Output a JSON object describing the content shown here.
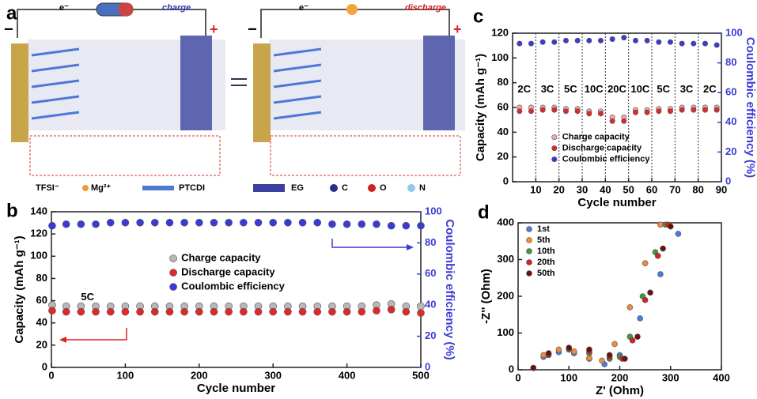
{
  "diagram": {
    "panel": "a",
    "left_label": "charge",
    "right_label": "discharge",
    "electron": "e⁻",
    "minus": "−",
    "plus": "+",
    "legend": [
      "TFSI⁻",
      "Mg²⁺",
      "PTCDI",
      "EG",
      "C",
      "O",
      "N"
    ]
  },
  "chart_data": [
    {
      "type": "scatter",
      "panel": "b",
      "x_label": "Cycle number",
      "y_label": "Capacity (mAh g⁻¹)",
      "y2_label": "Coulombic efficiency (%)",
      "xlim": [
        0,
        500
      ],
      "xticks": [
        0,
        100,
        200,
        300,
        400,
        500
      ],
      "ylim": [
        0,
        140
      ],
      "yticks": [
        0,
        20,
        40,
        60,
        80,
        100,
        120,
        140
      ],
      "y2lim": [
        0,
        100
      ],
      "y2ticks": [
        0,
        20,
        40,
        60,
        80,
        100
      ],
      "y2_color": "#3b3bd6",
      "annotation": "5C",
      "legend": "center",
      "x": [
        1,
        20,
        40,
        60,
        80,
        100,
        120,
        140,
        160,
        180,
        200,
        220,
        240,
        260,
        280,
        300,
        320,
        340,
        360,
        380,
        400,
        420,
        440,
        460,
        480,
        500
      ],
      "series": [
        {
          "name": "Charge capacity",
          "color": "#b8b8b8",
          "values": [
            56,
            55,
            55,
            55,
            55,
            55,
            55,
            55,
            55,
            55,
            55,
            55,
            55,
            55,
            55,
            55,
            55,
            55,
            55,
            55,
            55,
            55,
            56,
            57,
            55,
            55
          ]
        },
        {
          "name": "Discharge capacity",
          "color": "#e0282c",
          "values": [
            51,
            50,
            50,
            50,
            50,
            50,
            50,
            50,
            50,
            50,
            50,
            50,
            50,
            50,
            50,
            50,
            50,
            50,
            50,
            50,
            50,
            50,
            51,
            52,
            50,
            49
          ]
        },
        {
          "name": "Coulombic efficiency",
          "color": "#3a3ad8",
          "axis": "y2",
          "values": [
            91,
            92,
            92,
            92,
            93,
            93,
            93,
            93,
            93,
            93,
            93,
            93,
            93,
            93,
            93,
            93,
            93,
            93,
            93,
            92,
            92,
            92,
            92,
            91,
            91,
            91
          ]
        }
      ]
    },
    {
      "type": "scatter",
      "panel": "c",
      "x_label": "Cycle number",
      "y_label": "Capacity (mAh g⁻¹)",
      "y2_label": "Coulombic efficiency (%)",
      "xlim": [
        0,
        90
      ],
      "xticks": [
        10,
        20,
        30,
        40,
        50,
        60,
        70,
        80,
        90
      ],
      "ylim": [
        0,
        120
      ],
      "yticks": [
        0,
        20,
        40,
        60,
        80,
        100,
        120
      ],
      "y2lim": [
        0,
        100
      ],
      "y2ticks": [
        0,
        20,
        40,
        60,
        80,
        100
      ],
      "y2_color": "#3b3bd6",
      "grid": "x-dotted",
      "legend": "lower center",
      "segments": [
        "2C",
        "3C",
        "5C",
        "10C",
        "20C",
        "10C",
        "5C",
        "3C",
        "2C"
      ],
      "x": [
        3,
        8,
        13,
        18,
        23,
        28,
        33,
        38,
        43,
        48,
        53,
        58,
        63,
        68,
        73,
        78,
        83,
        88
      ],
      "series": [
        {
          "name": "Charge capacity",
          "color": "#f0a8a8",
          "values": [
            60,
            60,
            60,
            60,
            59,
            59,
            57,
            57,
            52,
            52,
            58,
            58,
            59,
            59,
            60,
            60,
            60,
            60
          ]
        },
        {
          "name": "Discharge capacity",
          "color": "#e0282c",
          "values": [
            57,
            57,
            58,
            58,
            57,
            57,
            55,
            55,
            49,
            49,
            56,
            56,
            57,
            57,
            58,
            58,
            58,
            58
          ]
        },
        {
          "name": "Coulombic efficiency",
          "color": "#3a3ad8",
          "axis": "y2",
          "values": [
            93,
            93,
            94,
            94,
            95,
            95,
            95,
            95,
            96,
            97,
            95,
            95,
            94,
            94,
            93,
            93,
            93,
            92
          ]
        }
      ]
    },
    {
      "type": "scatter",
      "panel": "d",
      "x_label": "Z' (Ohm)",
      "y_label": "-Z'' (Ohm)",
      "xlim": [
        0,
        400
      ],
      "xticks": [
        0,
        100,
        200,
        300,
        400
      ],
      "ylim": [
        0,
        400
      ],
      "yticks": [
        0,
        100,
        200,
        300,
        400
      ],
      "legend": "upper left",
      "series": [
        {
          "name": "1st",
          "color": "#4a7be0",
          "x": [
            30,
            50,
            80,
            110,
            140,
            170,
            200,
            240,
            280,
            315
          ],
          "values": [
            5,
            35,
            48,
            45,
            30,
            15,
            40,
            140,
            260,
            370
          ]
        },
        {
          "name": "5th",
          "color": "#f08a3c",
          "x": [
            30,
            50,
            80,
            110,
            140,
            165,
            190,
            220,
            250,
            280
          ],
          "values": [
            5,
            40,
            55,
            50,
            32,
            25,
            70,
            170,
            290,
            395
          ]
        },
        {
          "name": "10th",
          "color": "#3a9a3a",
          "x": [
            30,
            60,
            100,
            140,
            180,
            200,
            220,
            245,
            270,
            290
          ],
          "values": [
            5,
            40,
            55,
            45,
            30,
            35,
            90,
            200,
            320,
            395
          ]
        },
        {
          "name": "20th",
          "color": "#d82020",
          "x": [
            30,
            60,
            100,
            140,
            180,
            205,
            225,
            250,
            275,
            295
          ],
          "values": [
            5,
            42,
            58,
            50,
            35,
            30,
            80,
            190,
            310,
            395
          ]
        },
        {
          "name": "50th",
          "color": "#6a1010",
          "x": [
            30,
            60,
            100,
            140,
            180,
            210,
            235,
            260,
            285,
            300
          ],
          "values": [
            5,
            45,
            60,
            55,
            40,
            30,
            90,
            210,
            330,
            390
          ]
        }
      ]
    }
  ]
}
